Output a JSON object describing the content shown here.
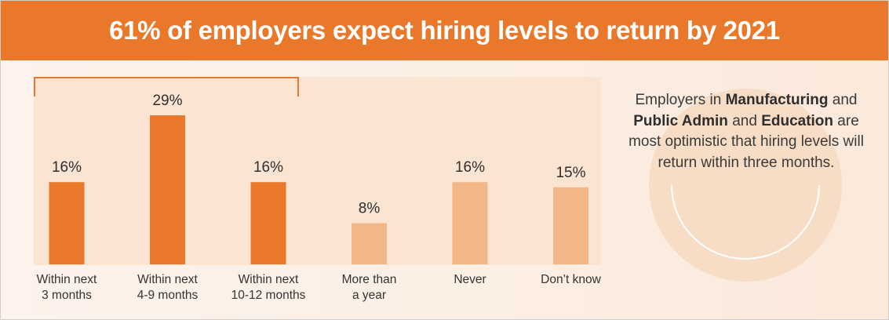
{
  "header": {
    "title": "61% of employers expect hiring levels to return by 2021"
  },
  "chart_data": {
    "type": "bar",
    "title": "61% of employers expect hiring levels to return by 2021",
    "xlabel": "",
    "ylabel": "",
    "categories": [
      "Within next\n3 months",
      "Within next\n4-9 months",
      "Within next\n10-12 months",
      "More than\na year",
      "Never",
      "Don’t know"
    ],
    "values": [
      16,
      29,
      16,
      8,
      16,
      15
    ],
    "data_labels": [
      "16%",
      "29%",
      "16%",
      "8%",
      "16%",
      "15%"
    ],
    "unit": "%",
    "ylim": [
      0,
      30
    ],
    "grid": false,
    "bar_colors": [
      "#e9782a",
      "#e9782a",
      "#e9782a",
      "#f3b687",
      "#f3b687",
      "#f3b687"
    ],
    "bracket_groups": [
      0,
      1,
      2
    ]
  },
  "callout": {
    "parts": [
      {
        "text": "Employers in ",
        "bold": false
      },
      {
        "text": "Manufacturing",
        "bold": true
      },
      {
        "text": " and ",
        "bold": false
      },
      {
        "text": "Public Admin",
        "bold": true
      },
      {
        "text": " and ",
        "bold": false
      },
      {
        "text": "Education",
        "bold": true
      },
      {
        "text": " are most optimistic that hiring levels will return within three months.",
        "bold": false
      }
    ]
  },
  "colors": {
    "accent": "#e9782a",
    "accent_light": "#f3b687",
    "text": "#333333"
  }
}
